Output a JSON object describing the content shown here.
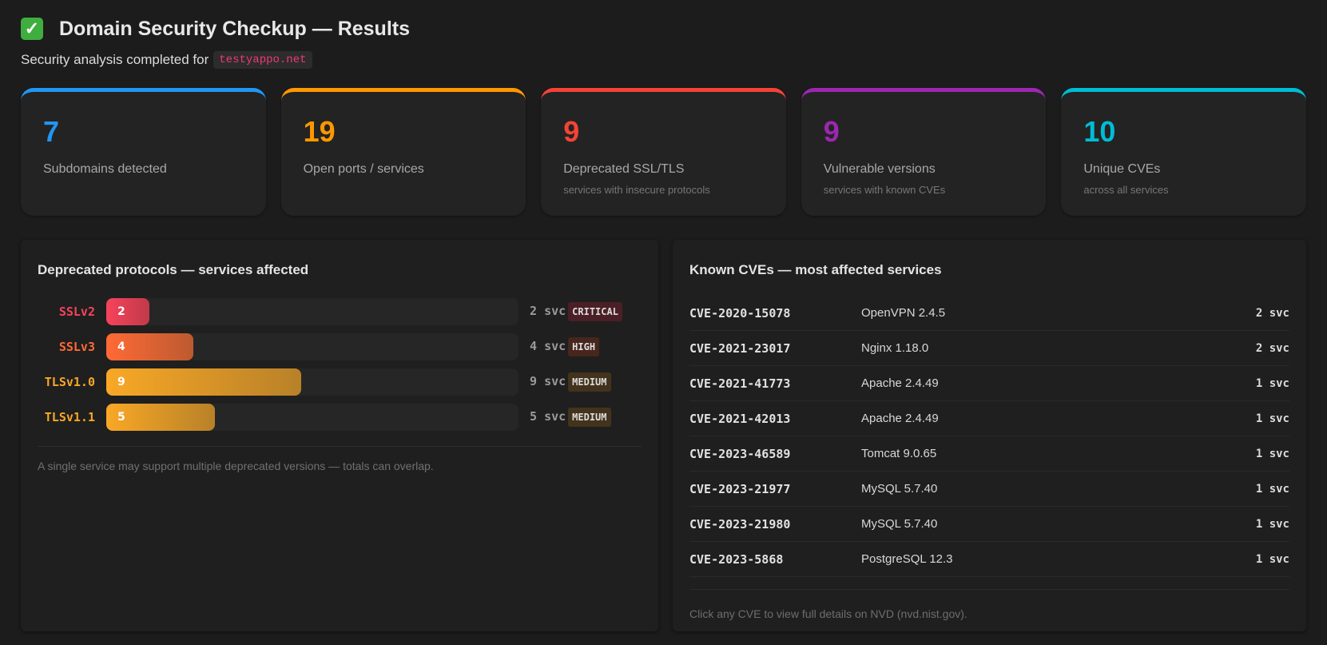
{
  "header": {
    "icon": "check-mark-icon",
    "title": "Domain Security Checkup — Results",
    "subtitle_prefix": "Security analysis completed for",
    "domain": "testyappo.net"
  },
  "stats": [
    {
      "value": "7",
      "label": "Subdomains detected",
      "sub": "",
      "color": "#2196f3"
    },
    {
      "value": "19",
      "label": "Open ports / services",
      "sub": "",
      "color": "#ff9800"
    },
    {
      "value": "9",
      "label": "Deprecated SSL/TLS",
      "sub": "services with insecure protocols",
      "color": "#f44336"
    },
    {
      "value": "9",
      "label": "Vulnerable versions",
      "sub": "services with known CVEs",
      "color": "#9c27b0"
    },
    {
      "value": "10",
      "label": "Unique CVEs",
      "sub": "across all services",
      "color": "#00bcd4"
    }
  ],
  "protocols": {
    "title": "Deprecated protocols — services affected",
    "max": 19,
    "rows": [
      {
        "name": "SSLv2",
        "count": "2",
        "unit": "svc",
        "severity": "CRITICAL",
        "color": "#f7435b",
        "grad": "#c03a4a",
        "badge_bg": "#4a1f25"
      },
      {
        "name": "SSLv3",
        "count": "4",
        "unit": "svc",
        "severity": "HIGH",
        "color": "#ff6a35",
        "grad": "#bc5a30",
        "badge_bg": "#46261d"
      },
      {
        "name": "TLSv1.0",
        "count": "9",
        "unit": "svc",
        "severity": "MEDIUM",
        "color": "#f9a826",
        "grad": "#b88128",
        "badge_bg": "#43331c"
      },
      {
        "name": "TLSv1.1",
        "count": "5",
        "unit": "svc",
        "severity": "MEDIUM",
        "color": "#f9a826",
        "grad": "#b88128",
        "badge_bg": "#43331c"
      }
    ],
    "note": "A single service may support multiple deprecated versions — totals can overlap."
  },
  "cves": {
    "title": "Known CVEs — most affected services",
    "rows": [
      {
        "id": "CVE-2020-15078",
        "service": "OpenVPN 2.4.5",
        "count": "2 svc"
      },
      {
        "id": "CVE-2021-23017",
        "service": "Nginx 1.18.0",
        "count": "2 svc"
      },
      {
        "id": "CVE-2021-41773",
        "service": "Apache 2.4.49",
        "count": "1 svc"
      },
      {
        "id": "CVE-2021-42013",
        "service": "Apache 2.4.49",
        "count": "1 svc"
      },
      {
        "id": "CVE-2023-46589",
        "service": "Tomcat 9.0.65",
        "count": "1 svc"
      },
      {
        "id": "CVE-2023-21977",
        "service": "MySQL 5.7.40",
        "count": "1 svc"
      },
      {
        "id": "CVE-2023-21980",
        "service": "MySQL 5.7.40",
        "count": "1 svc"
      },
      {
        "id": "CVE-2023-5868",
        "service": "PostgreSQL 12.3",
        "count": "1 svc"
      }
    ],
    "note": "Click any CVE to view full details on NVD (nvd.nist.gov)."
  }
}
